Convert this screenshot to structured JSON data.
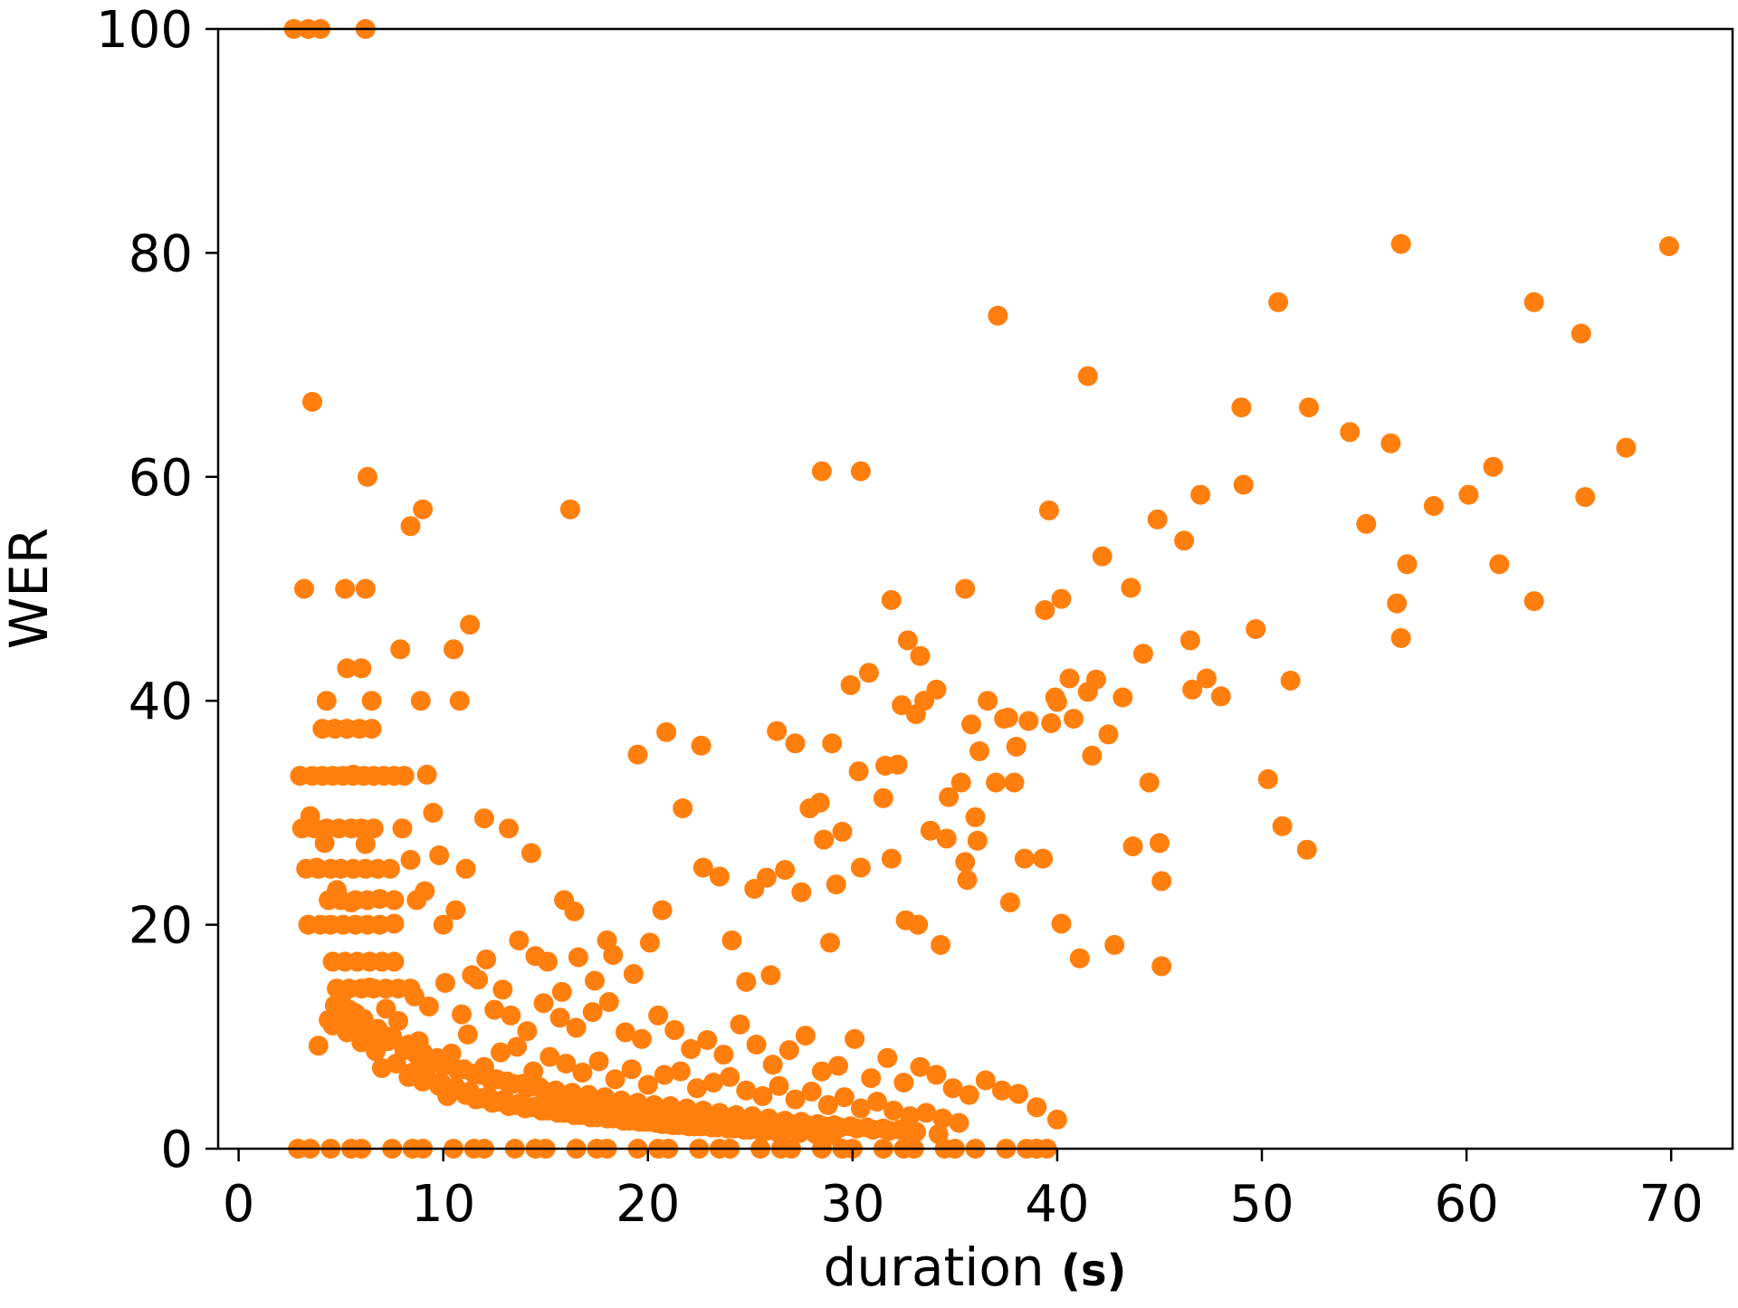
{
  "chart_data": {
    "type": "scatter",
    "title": "",
    "xlabel": "duration",
    "xlabel_unit": "(s)",
    "ylabel": "WER",
    "xlim": [
      -1,
      73
    ],
    "ylim": [
      0,
      100
    ],
    "xticks": [
      0,
      10,
      20,
      30,
      40,
      50,
      60,
      70
    ],
    "yticks": [
      0,
      20,
      40,
      60,
      80,
      100
    ],
    "grid": false,
    "legend": "none",
    "marker_color": "#ff7f0e",
    "series": [
      {
        "x": [
          2.7,
          3.4,
          4.0,
          6.2,
          3.6,
          6.3,
          8.4,
          9.0,
          16.2,
          28.5,
          30.4,
          37.1,
          50.8,
          56.8,
          69.9,
          63.3,
          65.6,
          41.5,
          49.0,
          52.3,
          56.3,
          54.3,
          67.8,
          61.3,
          60.1,
          58.4,
          55.1,
          65.8,
          57.1,
          61.6,
          63.3,
          56.6,
          56.8,
          51.4,
          50.3,
          45.1,
          45.0,
          44.5,
          52.2,
          51.0,
          49.1,
          47.0,
          46.2,
          44.9,
          42.2,
          40.2,
          39.6,
          35.5,
          31.9,
          32.7,
          33.3,
          34.1,
          36.6,
          37.4,
          38.0,
          39.9,
          40.6,
          41.5,
          42.5,
          43.2,
          43.6,
          46.6,
          48.0,
          49.7,
          47.3,
          46.5,
          44.2,
          41.9,
          40.8,
          40.0,
          39.4,
          38.6,
          37.6,
          36.2,
          35.8,
          35.3,
          34.7,
          33.5,
          32.4,
          31.6,
          30.8,
          29.9,
          29.0,
          28.4,
          27.2,
          26.3,
          25.8,
          3.2,
          4.3,
          5.6,
          5.2,
          6.2,
          6.5,
          7.9,
          8.9,
          9.2,
          10.5,
          11.3,
          10.8,
          8.0,
          9.5,
          12.0,
          13.2,
          14.3,
          15.9,
          16.4,
          18.0,
          19.5,
          20.7,
          22.7,
          24.1,
          25.2,
          27.9,
          29.2,
          30.4,
          31.5,
          32.2,
          33.1,
          33.8,
          34.6,
          35.5,
          36.0,
          37.7,
          38.4,
          39.3,
          40.2,
          41.1,
          42.8,
          43.7,
          45.1,
          41.7,
          39.7,
          37.9,
          37.0,
          36.1,
          35.6,
          34.3,
          33.2,
          32.6,
          31.9,
          30.3,
          29.5,
          28.6,
          28.9,
          27.5,
          26.7,
          26.0,
          24.8,
          23.5,
          22.6,
          21.7,
          20.9,
          20.1,
          19.3,
          18.3,
          17.4,
          16.6,
          15.8,
          15.1,
          14.5,
          13.7,
          12.9,
          12.1,
          11.4,
          10.6,
          9.8,
          9.1,
          8.4,
          7.6,
          6.9,
          6.2,
          5.5,
          4.8,
          4.2,
          3.8,
          3.5,
          4.4,
          5.0,
          5.7,
          6.4,
          7.2,
          7.8,
          8.6,
          9.3,
          10.1,
          10.9,
          11.7,
          12.5,
          13.3,
          14.1,
          14.9,
          15.7,
          16.5,
          17.3,
          18.1,
          18.9,
          19.7,
          20.5,
          21.3,
          22.1,
          22.9,
          23.7,
          24.5,
          25.3,
          26.1,
          26.9,
          27.7,
          28.5,
          29.3,
          30.1,
          30.9,
          31.7,
          32.5,
          33.3,
          34.1,
          34.9,
          35.7,
          36.5,
          37.3,
          38.1,
          39.0,
          40.0,
          3.9,
          4.6,
          5.3,
          6.0,
          6.7,
          7.4,
          8.1,
          8.8,
          9.6,
          10.4,
          11.2,
          12.0,
          12.8,
          13.6,
          14.4,
          15.2,
          16.0,
          16.8,
          17.6,
          18.4,
          19.2,
          20.0,
          20.8,
          21.6,
          22.4,
          23.2,
          24.0,
          24.8,
          25.6,
          26.4,
          27.2,
          28.0,
          28.8,
          29.6,
          30.4,
          31.2,
          32.0,
          32.8,
          33.6,
          34.4,
          35.2,
          4.7,
          5.1,
          5.8,
          6.6,
          7.3,
          8.2,
          8.7,
          9.4,
          10.0,
          10.7,
          11.5,
          12.3,
          13.1,
          13.9,
          14.7,
          15.5,
          16.3,
          17.1,
          17.9,
          18.7,
          19.5,
          20.3,
          21.1,
          21.9,
          22.7,
          23.5,
          24.3,
          25.1,
          25.9,
          26.7,
          27.5,
          28.3,
          29.1,
          29.9,
          30.7,
          31.5,
          32.3,
          33.1,
          34.2,
          5.4,
          6.1,
          6.8,
          7.5,
          8.3,
          9.0,
          9.7,
          10.3,
          11.0,
          11.8,
          12.6,
          13.4,
          14.2,
          15.0,
          15.8,
          16.6,
          17.4,
          18.2,
          19.0,
          19.8,
          20.6,
          21.4,
          22.2,
          23.0,
          23.8,
          24.6,
          25.4,
          26.2,
          27.0,
          27.8,
          28.6,
          29.4,
          30.2,
          31.0,
          31.8,
          32.6,
          7.0,
          7.7,
          8.5,
          9.2,
          9.9,
          10.6,
          11.3,
          12.2,
          13.0,
          13.8,
          14.6,
          15.4,
          16.2,
          17.0,
          17.8,
          18.6,
          19.4,
          20.2,
          21.0,
          21.8,
          22.6,
          23.4,
          24.2,
          25.0,
          25.8,
          26.6,
          27.4,
          28.2,
          29.0,
          8.3,
          9.0,
          9.8,
          10.5,
          11.1,
          11.9,
          12.7,
          13.5,
          14.3,
          15.1,
          15.9,
          16.7,
          17.5,
          18.3,
          19.1,
          19.9,
          20.7,
          21.5,
          22.3,
          23.1,
          23.9,
          24.7,
          25.5,
          26.3,
          9.1,
          10.2,
          11.6,
          12.4,
          13.2,
          14.0,
          14.8,
          15.6,
          16.4,
          17.2,
          18.0,
          18.8,
          19.6,
          20.4,
          21.2,
          22.0,
          3.0,
          3.6,
          4.1,
          4.6,
          5.1,
          5.6,
          6.1,
          6.6,
          7.1,
          7.6,
          8.1,
          3.1,
          3.7,
          4.3,
          4.9,
          5.5,
          6.0,
          6.6,
          3.3,
          3.9,
          4.5,
          5.0,
          5.6,
          6.2,
          6.8,
          7.4,
          3.4,
          4.0,
          4.5,
          5.1,
          5.7,
          6.3,
          6.9,
          4.6,
          5.2,
          5.8,
          6.4,
          7.0,
          7.6,
          4.8,
          5.4,
          6.0,
          6.6,
          7.2,
          7.8,
          8.4,
          4.1,
          4.7,
          5.3,
          5.9,
          6.5,
          4.4,
          5.0,
          5.7,
          6.3,
          5.3,
          6.0,
          7.6,
          8.7,
          10.0,
          11.1,
          2.9,
          4.5,
          6.0,
          7.5,
          9.0,
          10.5,
          12.0,
          13.5,
          15.0,
          16.5,
          18.0,
          19.5,
          21.0,
          22.5,
          24.0,
          25.5,
          27.0,
          28.5,
          30.0,
          31.5,
          33.0,
          34.5,
          36.0,
          37.5,
          39.0,
          39.5,
          3.5,
          5.5,
          8.5,
          11.5,
          14.5,
          17.5,
          20.5,
          23.5,
          26.5,
          29.5,
          32.5,
          35.0,
          38.5
        ],
        "y": [
          100,
          100,
          100,
          100,
          66.7,
          60,
          55.6,
          57.1,
          57.1,
          60.5,
          60.5,
          74.4,
          75.6,
          80.8,
          80.6,
          75.6,
          72.8,
          69,
          66.2,
          66.2,
          63,
          64,
          62.6,
          60.9,
          58.4,
          57.4,
          55.8,
          58.2,
          52.2,
          52.2,
          48.9,
          48.7,
          45.6,
          41.8,
          33,
          16.3,
          27.3,
          32.7,
          26.7,
          28.8,
          59.3,
          58.4,
          54.3,
          56.2,
          52.9,
          49.1,
          57,
          50,
          49,
          45.4,
          44,
          41,
          40,
          38.4,
          35.9,
          40.3,
          42,
          40.8,
          37,
          40.3,
          50.1,
          41,
          40.4,
          46.4,
          42,
          45.4,
          44.2,
          41.9,
          38.4,
          39.9,
          48.1,
          38.2,
          38.5,
          35.5,
          37.9,
          32.7,
          31.4,
          40,
          39.6,
          34.2,
          42.5,
          41.4,
          36.2,
          30.9,
          36.2,
          37.3,
          24.2,
          50,
          40,
          33.4,
          50,
          50,
          40,
          44.6,
          40,
          33.4,
          44.6,
          46.8,
          40,
          28.6,
          30,
          29.5,
          28.6,
          26.4,
          22.2,
          21.2,
          18.6,
          35.2,
          21.3,
          25.1,
          18.6,
          23.2,
          30.4,
          23.6,
          25.1,
          31.3,
          34.3,
          38.8,
          28.4,
          27.7,
          25.6,
          29.6,
          22,
          25.9,
          25.9,
          20.1,
          17,
          18.2,
          27,
          23.9,
          35.1,
          38,
          32.7,
          32.7,
          27.5,
          24,
          18.2,
          20,
          20.4,
          25.9,
          33.7,
          28.3,
          27.6,
          18.4,
          22.9,
          24.9,
          15.5,
          14.9,
          24.3,
          36,
          30.4,
          37.2,
          18.4,
          15.6,
          17.3,
          15,
          17.1,
          14,
          16.7,
          17.2,
          18.6,
          14.2,
          16.9,
          15.5,
          21.3,
          26.2,
          23,
          25.8,
          20.1,
          22.3,
          27.2,
          22,
          23.1,
          27.3,
          25.1,
          29.7,
          11.5,
          13.2,
          12.1,
          14.4,
          12.5,
          11.4,
          13.6,
          12.7,
          14.8,
          12,
          15.1,
          12.4,
          11.9,
          10.5,
          13,
          11.7,
          10.8,
          12.2,
          13.1,
          10.4,
          9.8,
          11.9,
          10.6,
          8.9,
          9.7,
          8.4,
          11.1,
          9.3,
          7.5,
          8.8,
          10.1,
          6.9,
          7.4,
          9.8,
          6.3,
          8.1,
          5.9,
          7.3,
          6.6,
          5.4,
          4.8,
          6.1,
          5.2,
          4.9,
          3.7,
          2.6,
          9.2,
          11,
          10.4,
          9.5,
          8.7,
          10,
          8.8,
          9.6,
          7.9,
          8.5,
          10.2,
          7.3,
          8.6,
          9.1,
          6.9,
          8.2,
          7.6,
          6.8,
          7.8,
          6.2,
          7.1,
          5.7,
          6.6,
          6.9,
          5.4,
          5.9,
          6.4,
          5.2,
          4.7,
          5.6,
          4.4,
          5.1,
          3.9,
          4.6,
          3.6,
          4.2,
          3.4,
          2.9,
          3.2,
          2.7,
          2.3,
          12.8,
          12,
          11,
          10.3,
          9.6,
          9,
          8.4,
          7.9,
          7.4,
          7,
          6.7,
          6.2,
          6,
          5.8,
          5.5,
          5.2,
          5,
          4.8,
          4.6,
          4.3,
          4.1,
          3.9,
          3.8,
          3.6,
          3.4,
          3.2,
          3,
          2.9,
          2.7,
          2.5,
          2.4,
          2.2,
          2.1,
          2,
          1.9,
          1.8,
          1.7,
          1.5,
          1.3,
          12.4,
          11.6,
          10.7,
          10,
          9.3,
          8.6,
          8.1,
          7.6,
          7.1,
          6.6,
          6.2,
          5.8,
          5.5,
          5.1,
          4.8,
          4.5,
          4.3,
          4,
          3.8,
          3.6,
          3.4,
          3.2,
          3,
          2.9,
          2.7,
          2.6,
          2.4,
          2.3,
          2.2,
          2.1,
          2,
          1.9,
          1.8,
          1.7,
          1.6,
          1.5,
          7.2,
          7.6,
          6.8,
          6.4,
          5.9,
          5.5,
          5.1,
          4.7,
          4.4,
          4.1,
          3.8,
          3.6,
          3.3,
          3.1,
          2.9,
          2.7,
          2.5,
          2.4,
          2.2,
          2.1,
          2,
          1.9,
          1.8,
          1.7,
          1.6,
          1.5,
          1.4,
          1.3,
          1.2,
          6.4,
          6,
          5.6,
          5.2,
          4.8,
          4.5,
          4.2,
          3.9,
          3.7,
          3.4,
          3.2,
          3,
          2.8,
          2.7,
          2.5,
          2.4,
          2.2,
          2.1,
          2,
          1.9,
          1.8,
          1.7,
          1.6,
          1.5,
          7.9,
          4.7,
          4.4,
          4.1,
          3.8,
          3.6,
          3.4,
          3.2,
          3,
          2.8,
          2.7,
          2.5,
          2.4,
          2.3,
          2.1,
          2,
          33.3,
          33.3,
          33.3,
          33.3,
          33.3,
          33.3,
          33.3,
          33.3,
          33.3,
          33.3,
          33.3,
          28.6,
          28.6,
          28.6,
          28.6,
          28.6,
          28.6,
          28.6,
          25,
          25,
          25,
          25,
          25,
          25,
          25,
          25,
          20,
          20,
          20,
          20,
          20,
          20,
          20,
          16.7,
          16.7,
          16.7,
          16.7,
          16.7,
          16.7,
          14.3,
          14.3,
          14.3,
          14.3,
          14.3,
          14.3,
          14.3,
          37.5,
          37.5,
          37.5,
          37.5,
          37.5,
          22.2,
          22.2,
          22.2,
          22.2,
          42.9,
          42.9,
          22.2,
          22.2,
          20,
          25,
          0,
          0,
          0,
          0,
          0,
          0,
          0,
          0,
          0,
          0,
          0,
          0,
          0,
          0,
          0,
          0,
          0,
          0,
          0,
          0,
          0,
          0,
          0,
          0,
          0,
          0,
          0,
          0,
          0,
          0,
          0,
          0,
          0,
          0,
          0,
          0,
          0,
          0,
          0
        ]
      }
    ]
  }
}
